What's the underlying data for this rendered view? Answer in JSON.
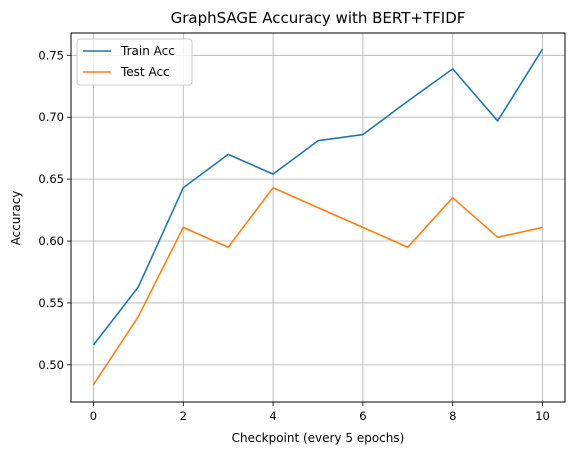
{
  "chart_data": {
    "type": "line",
    "title": "GraphSAGE Accuracy with BERT+TFIDF",
    "xlabel": "Checkpoint (every 5 epochs)",
    "ylabel": "Accuracy",
    "x": [
      0,
      1,
      2,
      3,
      4,
      5,
      6,
      7,
      8,
      9,
      10
    ],
    "xlim": [
      -0.5,
      10.5
    ],
    "ylim": [
      0.47,
      0.768
    ],
    "xticks": [
      0,
      2,
      4,
      6,
      8,
      10
    ],
    "xtick_labels": [
      "0",
      "2",
      "4",
      "6",
      "8",
      "10"
    ],
    "yticks": [
      0.5,
      0.55,
      0.6,
      0.65,
      0.7,
      0.75
    ],
    "ytick_labels": [
      "0.50",
      "0.55",
      "0.60",
      "0.65",
      "0.70",
      "0.75"
    ],
    "grid": true,
    "legend_position": "upper-left",
    "series": [
      {
        "name": "Train Acc",
        "color": "#1f77b4",
        "values": [
          0.516,
          0.563,
          0.643,
          0.67,
          0.654,
          0.681,
          0.686,
          0.713,
          0.739,
          0.697,
          0.755
        ]
      },
      {
        "name": "Test Acc",
        "color": "#ff7f0e",
        "values": [
          0.484,
          0.539,
          0.611,
          0.595,
          0.643,
          0.627,
          0.611,
          0.595,
          0.635,
          0.603,
          0.611
        ]
      }
    ]
  }
}
